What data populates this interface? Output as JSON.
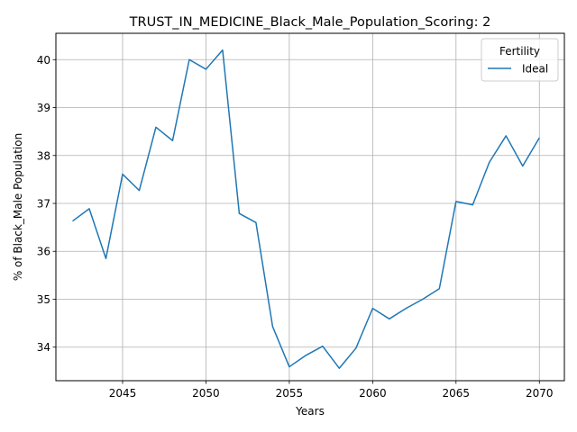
{
  "chart_data": {
    "type": "line",
    "title": "TRUST_IN_MEDICINE_Black_Male_Population_Scoring: 2",
    "xlabel": "Years",
    "ylabel": "% of Black_Male Population",
    "xlim": [
      2041,
      2071.5
    ],
    "ylim": [
      33.3,
      40.55
    ],
    "xticks": [
      2045,
      2050,
      2055,
      2060,
      2065,
      2070
    ],
    "yticks": [
      34,
      35,
      36,
      37,
      38,
      39,
      40
    ],
    "grid": true,
    "legend": {
      "title": "Fertility",
      "placement": "top-right"
    },
    "series": [
      {
        "name": "Ideal",
        "color": "#1f77b4",
        "x": [
          2042,
          2043,
          2044,
          2045,
          2046,
          2047,
          2048,
          2049,
          2050,
          2051,
          2052,
          2053,
          2054,
          2055,
          2056,
          2057,
          2058,
          2059,
          2060,
          2061,
          2062,
          2063,
          2064,
          2065,
          2066,
          2067,
          2068,
          2069,
          2070
        ],
        "values": [
          36.63,
          36.89,
          35.85,
          37.61,
          37.27,
          38.59,
          38.31,
          40.0,
          39.8,
          40.2,
          36.79,
          36.6,
          34.43,
          33.59,
          33.83,
          34.02,
          33.56,
          33.98,
          34.81,
          34.59,
          34.81,
          35.0,
          35.22,
          37.04,
          36.97,
          37.86,
          38.41,
          37.78,
          38.37
        ]
      }
    ]
  }
}
